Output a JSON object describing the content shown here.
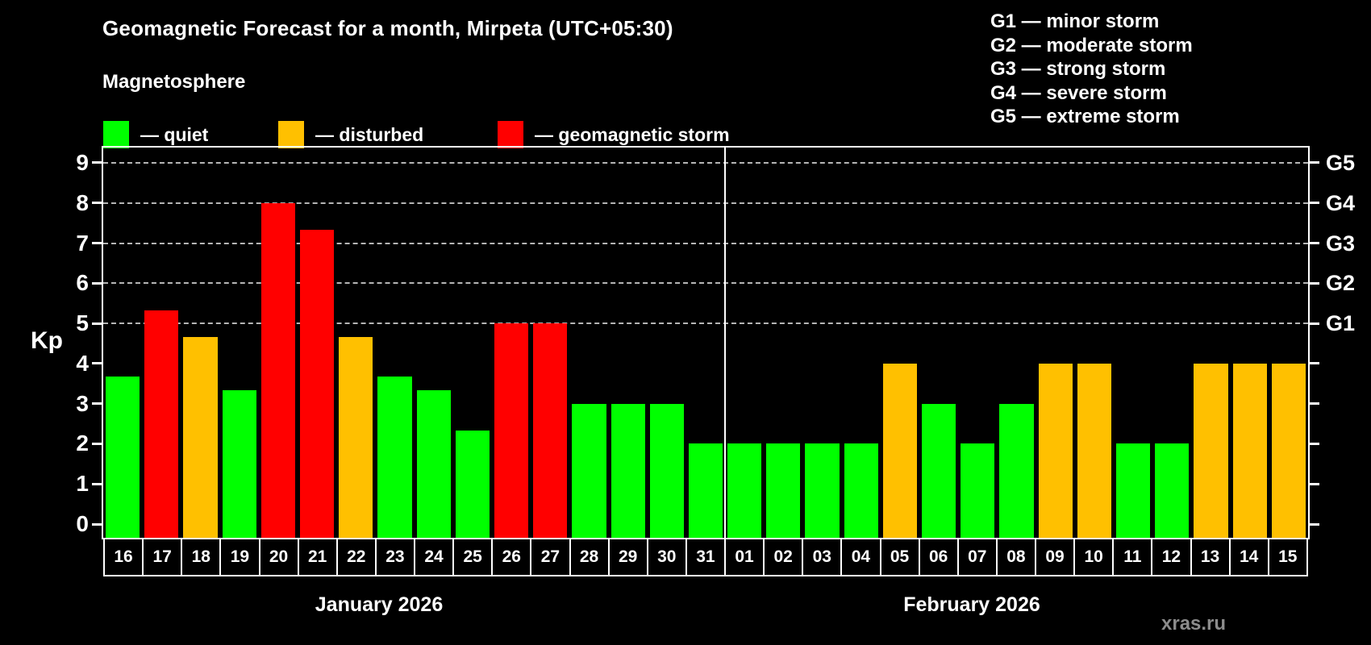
{
  "title": "Geomagnetic Forecast for a month, Mirpeta (UTC+05:30)",
  "subtitle": "Magnetosphere",
  "legend": [
    {
      "key": "quiet",
      "label": "— quiet",
      "color": "#00ff00"
    },
    {
      "key": "disturbed",
      "label": "— disturbed",
      "color": "#ffc000"
    },
    {
      "key": "storm",
      "label": "— geomagnetic storm",
      "color": "#ff0000"
    }
  ],
  "g_legend": [
    "G1 — minor storm",
    "G2 — moderate storm",
    "G3 — strong storm",
    "G4 — severe storm",
    "G5 — extreme storm"
  ],
  "watermark": "xras.ru",
  "colors": {
    "background": "#000000",
    "text": "#ffffff",
    "grid": "#b5b5b5",
    "quiet": "#00ff00",
    "disturbed": "#ffc000",
    "storm": "#ff0000",
    "watermark": "#8c8c8c"
  },
  "chart_data": {
    "type": "bar",
    "ylabel": "Kp",
    "ylim": [
      0,
      9
    ],
    "yticks": [
      0,
      1,
      2,
      3,
      4,
      5,
      6,
      7,
      8,
      9
    ],
    "gridlines": [
      5,
      6,
      7,
      8,
      9
    ],
    "grid_style": "dashed",
    "legend_position": "top",
    "right_axis": [
      {
        "kp": 5,
        "label": "G1"
      },
      {
        "kp": 6,
        "label": "G2"
      },
      {
        "kp": 7,
        "label": "G3"
      },
      {
        "kp": 8,
        "label": "G4"
      },
      {
        "kp": 9,
        "label": "G5"
      }
    ],
    "months": [
      {
        "label": "January 2026",
        "days": [
          {
            "day": "16",
            "kp": 3.67,
            "status": "quiet"
          },
          {
            "day": "17",
            "kp": 5.33,
            "status": "storm"
          },
          {
            "day": "18",
            "kp": 4.67,
            "status": "disturbed"
          },
          {
            "day": "19",
            "kp": 3.33,
            "status": "quiet"
          },
          {
            "day": "20",
            "kp": 8.0,
            "status": "storm"
          },
          {
            "day": "21",
            "kp": 7.33,
            "status": "storm"
          },
          {
            "day": "22",
            "kp": 4.67,
            "status": "disturbed"
          },
          {
            "day": "23",
            "kp": 3.67,
            "status": "quiet"
          },
          {
            "day": "24",
            "kp": 3.33,
            "status": "quiet"
          },
          {
            "day": "25",
            "kp": 2.33,
            "status": "quiet"
          },
          {
            "day": "26",
            "kp": 5.0,
            "status": "storm"
          },
          {
            "day": "27",
            "kp": 5.0,
            "status": "storm"
          },
          {
            "day": "28",
            "kp": 3.0,
            "status": "quiet"
          },
          {
            "day": "29",
            "kp": 3.0,
            "status": "quiet"
          },
          {
            "day": "30",
            "kp": 3.0,
            "status": "quiet"
          },
          {
            "day": "31",
            "kp": 2.0,
            "status": "quiet"
          }
        ]
      },
      {
        "label": "February 2026",
        "days": [
          {
            "day": "01",
            "kp": 2.0,
            "status": "quiet"
          },
          {
            "day": "02",
            "kp": 2.0,
            "status": "quiet"
          },
          {
            "day": "03",
            "kp": 2.0,
            "status": "quiet"
          },
          {
            "day": "04",
            "kp": 2.0,
            "status": "quiet"
          },
          {
            "day": "05",
            "kp": 4.0,
            "status": "disturbed"
          },
          {
            "day": "06",
            "kp": 3.0,
            "status": "quiet"
          },
          {
            "day": "07",
            "kp": 2.0,
            "status": "quiet"
          },
          {
            "day": "08",
            "kp": 3.0,
            "status": "quiet"
          },
          {
            "day": "09",
            "kp": 4.0,
            "status": "disturbed"
          },
          {
            "day": "10",
            "kp": 4.0,
            "status": "disturbed"
          },
          {
            "day": "11",
            "kp": 2.0,
            "status": "quiet"
          },
          {
            "day": "12",
            "kp": 2.0,
            "status": "quiet"
          },
          {
            "day": "13",
            "kp": 4.0,
            "status": "disturbed"
          },
          {
            "day": "14",
            "kp": 4.0,
            "status": "disturbed"
          },
          {
            "day": "15",
            "kp": 4.0,
            "status": "disturbed"
          }
        ]
      }
    ]
  }
}
